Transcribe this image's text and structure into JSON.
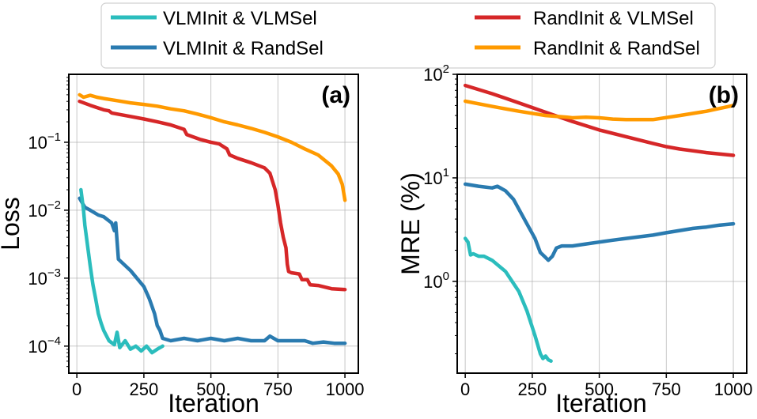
{
  "legend": [
    {
      "label": "VLMInit & VLMSel",
      "color": "#2bbdbd"
    },
    {
      "label": "VLMInit & RandSel",
      "color": "#2a7bb0"
    },
    {
      "label": "RandInit & VLMSel",
      "color": "#d62728"
    },
    {
      "label": "RandInit & RandSel",
      "color": "#ff9a00"
    }
  ],
  "chart_data": [
    {
      "type": "line",
      "panel_label": "(a)",
      "xlabel": "Iteration",
      "ylabel": "Loss",
      "yscale": "log",
      "xlim": [
        -30,
        1050
      ],
      "ylim": [
        4e-05,
        1.0
      ],
      "xticks": [
        0,
        250,
        500,
        750,
        1000
      ],
      "yticks": [
        {
          "value": 0.1,
          "base": "10",
          "exp": "−1"
        },
        {
          "value": 0.01,
          "base": "10",
          "exp": "−2"
        },
        {
          "value": 0.001,
          "base": "10",
          "exp": "−3"
        },
        {
          "value": 0.0001,
          "base": "10",
          "exp": "−4"
        }
      ],
      "series": [
        {
          "name": "RandInit & RandSel",
          "color": "#ff9a00",
          "points": [
            [
              10,
              0.5
            ],
            [
              25,
              0.46
            ],
            [
              50,
              0.49
            ],
            [
              75,
              0.46
            ],
            [
              100,
              0.44
            ],
            [
              150,
              0.41
            ],
            [
              200,
              0.38
            ],
            [
              250,
              0.36
            ],
            [
              300,
              0.34
            ],
            [
              350,
              0.31
            ],
            [
              400,
              0.29
            ],
            [
              450,
              0.26
            ],
            [
              500,
              0.23
            ],
            [
              550,
              0.2
            ],
            [
              600,
              0.18
            ],
            [
              650,
              0.16
            ],
            [
              700,
              0.14
            ],
            [
              750,
              0.12
            ],
            [
              800,
              0.1
            ],
            [
              850,
              0.08
            ],
            [
              900,
              0.065
            ],
            [
              950,
              0.045
            ],
            [
              975,
              0.034
            ],
            [
              990,
              0.024
            ],
            [
              1000,
              0.014
            ]
          ]
        },
        {
          "name": "RandInit & VLMSel",
          "color": "#d62728",
          "points": [
            [
              10,
              0.4
            ],
            [
              50,
              0.35
            ],
            [
              100,
              0.3
            ],
            [
              120,
              0.29
            ],
            [
              130,
              0.27
            ],
            [
              200,
              0.24
            ],
            [
              250,
              0.22
            ],
            [
              300,
              0.2
            ],
            [
              350,
              0.18
            ],
            [
              400,
              0.155
            ],
            [
              410,
              0.13
            ],
            [
              460,
              0.11
            ],
            [
              500,
              0.1
            ],
            [
              530,
              0.095
            ],
            [
              560,
              0.08
            ],
            [
              570,
              0.065
            ],
            [
              600,
              0.058
            ],
            [
              650,
              0.05
            ],
            [
              700,
              0.042
            ],
            [
              720,
              0.035
            ],
            [
              740,
              0.02
            ],
            [
              750,
              0.012
            ],
            [
              760,
              0.0065
            ],
            [
              770,
              0.004
            ],
            [
              780,
              0.0028
            ],
            [
              785,
              0.0016
            ],
            [
              790,
              0.00125
            ],
            [
              800,
              0.0012
            ],
            [
              830,
              0.00115
            ],
            [
              840,
              0.00095
            ],
            [
              860,
              0.00095
            ],
            [
              870,
              0.0008
            ],
            [
              900,
              0.00078
            ],
            [
              950,
              0.0007
            ],
            [
              1000,
              0.00068
            ]
          ]
        },
        {
          "name": "VLMInit & RandSel",
          "color": "#2a7bb0",
          "points": [
            [
              10,
              0.015
            ],
            [
              30,
              0.011
            ],
            [
              50,
              0.01
            ],
            [
              80,
              0.0085
            ],
            [
              100,
              0.008
            ],
            [
              130,
              0.0065
            ],
            [
              140,
              0.005
            ],
            [
              145,
              0.0065
            ],
            [
              150,
              0.0035
            ],
            [
              155,
              0.0019
            ],
            [
              200,
              0.0013
            ],
            [
              250,
              0.00075
            ],
            [
              270,
              0.0005
            ],
            [
              290,
              0.0003
            ],
            [
              300,
              0.0002
            ],
            [
              310,
              0.00017
            ],
            [
              320,
              0.00013
            ],
            [
              350,
              0.00012
            ],
            [
              400,
              0.00013
            ],
            [
              450,
              0.00012
            ],
            [
              500,
              0.00013
            ],
            [
              550,
              0.00012
            ],
            [
              600,
              0.00013
            ],
            [
              650,
              0.00012
            ],
            [
              700,
              0.00012
            ],
            [
              720,
              0.00014
            ],
            [
              750,
              0.00012
            ],
            [
              800,
              0.00012
            ],
            [
              850,
              0.00012
            ],
            [
              880,
              0.00011
            ],
            [
              920,
              0.000115
            ],
            [
              960,
              0.00011
            ],
            [
              1000,
              0.00011
            ]
          ]
        },
        {
          "name": "VLMInit & VLMSel",
          "color": "#2bbdbd",
          "points": [
            [
              15,
              0.02
            ],
            [
              25,
              0.01
            ],
            [
              30,
              0.006
            ],
            [
              40,
              0.003
            ],
            [
              50,
              0.0015
            ],
            [
              60,
              0.0008
            ],
            [
              70,
              0.0005
            ],
            [
              80,
              0.0003
            ],
            [
              90,
              0.00022
            ],
            [
              100,
              0.00017
            ],
            [
              120,
              0.00012
            ],
            [
              140,
              0.000105
            ],
            [
              150,
              0.00016
            ],
            [
              160,
              9.5e-05
            ],
            [
              180,
              0.00012
            ],
            [
              200,
              9e-05
            ],
            [
              220,
              0.0001
            ],
            [
              240,
              8.5e-05
            ],
            [
              260,
              0.0001
            ],
            [
              280,
              8e-05
            ],
            [
              300,
              9e-05
            ],
            [
              320,
              0.0001
            ]
          ]
        }
      ]
    },
    {
      "type": "line",
      "panel_label": "(b)",
      "xlabel": "Iteration",
      "ylabel": "MRE (%)",
      "yscale": "log",
      "xlim": [
        -30,
        1050
      ],
      "ylim": [
        0.13,
        100
      ],
      "xticks": [
        0,
        250,
        500,
        750,
        1000
      ],
      "yticks": [
        {
          "value": 100,
          "base": "10",
          "exp": "2"
        },
        {
          "value": 10,
          "base": "10",
          "exp": "1"
        },
        {
          "value": 1,
          "base": "10",
          "exp": "0"
        }
      ],
      "series": [
        {
          "name": "RandInit & VLMSel",
          "color": "#d62728",
          "points": [
            [
              0,
              78
            ],
            [
              100,
              65
            ],
            [
              200,
              53
            ],
            [
              300,
              43
            ],
            [
              400,
              35
            ],
            [
              500,
              29
            ],
            [
              600,
              25
            ],
            [
              700,
              21.5
            ],
            [
              750,
              20
            ],
            [
              800,
              19
            ],
            [
              900,
              17.5
            ],
            [
              1000,
              16.5
            ]
          ]
        },
        {
          "name": "RandInit & RandSel",
          "color": "#ff9a00",
          "points": [
            [
              0,
              55
            ],
            [
              100,
              49
            ],
            [
              200,
              44
            ],
            [
              300,
              40
            ],
            [
              380,
              38.5
            ],
            [
              400,
              38
            ],
            [
              450,
              38.5
            ],
            [
              500,
              38
            ],
            [
              550,
              37
            ],
            [
              600,
              36.5
            ],
            [
              650,
              36.5
            ],
            [
              700,
              36.5
            ],
            [
              800,
              40
            ],
            [
              900,
              44
            ],
            [
              1000,
              50
            ]
          ]
        },
        {
          "name": "VLMInit & RandSel",
          "color": "#2a7bb0",
          "points": [
            [
              0,
              8.7
            ],
            [
              50,
              8.3
            ],
            [
              100,
              8.0
            ],
            [
              120,
              8.3
            ],
            [
              150,
              7.5
            ],
            [
              180,
              6.2
            ],
            [
              200,
              5.0
            ],
            [
              230,
              3.6
            ],
            [
              260,
              2.6
            ],
            [
              280,
              1.9
            ],
            [
              300,
              1.7
            ],
            [
              310,
              1.6
            ],
            [
              325,
              1.75
            ],
            [
              340,
              2.1
            ],
            [
              360,
              2.2
            ],
            [
              400,
              2.2
            ],
            [
              450,
              2.3
            ],
            [
              500,
              2.4
            ],
            [
              550,
              2.5
            ],
            [
              600,
              2.6
            ],
            [
              650,
              2.7
            ],
            [
              700,
              2.8
            ],
            [
              750,
              2.95
            ],
            [
              800,
              3.1
            ],
            [
              850,
              3.25
            ],
            [
              900,
              3.35
            ],
            [
              950,
              3.5
            ],
            [
              1000,
              3.6
            ]
          ]
        },
        {
          "name": "VLMInit & VLMSel",
          "color": "#2bbdbd",
          "points": [
            [
              0,
              2.6
            ],
            [
              10,
              2.4
            ],
            [
              20,
              1.8
            ],
            [
              30,
              1.85
            ],
            [
              50,
              1.75
            ],
            [
              70,
              1.75
            ],
            [
              100,
              1.6
            ],
            [
              150,
              1.25
            ],
            [
              200,
              0.8
            ],
            [
              230,
              0.52
            ],
            [
              260,
              0.3
            ],
            [
              280,
              0.2
            ],
            [
              290,
              0.18
            ],
            [
              300,
              0.19
            ],
            [
              310,
              0.175
            ],
            [
              320,
              0.17
            ]
          ]
        }
      ]
    }
  ]
}
